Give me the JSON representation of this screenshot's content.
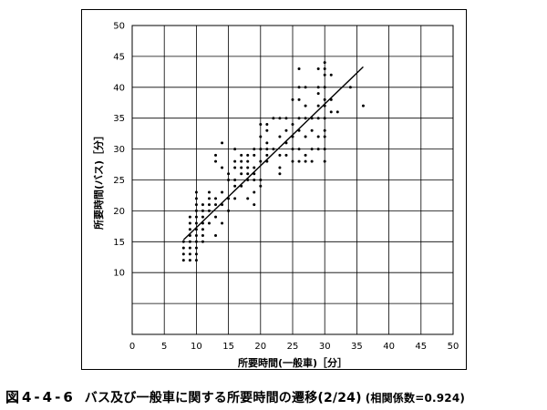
{
  "caption": {
    "figure_number": "図4-4-6",
    "text": "バス及び一般車に関する所要時間の遷移(2/24)",
    "coefficient": "(相関係数=0.924)"
  },
  "chart_data": {
    "type": "scatter",
    "xlabel": "所要時間(一般車)［分］",
    "ylabel": "所要時間(バス)［分］",
    "xlim": [
      0,
      50
    ],
    "ylim": [
      0,
      50
    ],
    "xticks": [
      0,
      5,
      10,
      15,
      20,
      25,
      30,
      35,
      40,
      45,
      50
    ],
    "yticks": [
      10,
      15,
      20,
      25,
      30,
      35,
      40,
      45,
      50
    ],
    "grid": true,
    "series": [
      {
        "marker": "dot",
        "color": "#000000",
        "points": [
          [
            8,
            12
          ],
          [
            8,
            13
          ],
          [
            8,
            14
          ],
          [
            8,
            15
          ],
          [
            9,
            12
          ],
          [
            9,
            13
          ],
          [
            9,
            14
          ],
          [
            9,
            15
          ],
          [
            9,
            16
          ],
          [
            9,
            17
          ],
          [
            9,
            18
          ],
          [
            9,
            19
          ],
          [
            10,
            12
          ],
          [
            10,
            13
          ],
          [
            10,
            14
          ],
          [
            10,
            15
          ],
          [
            10,
            16
          ],
          [
            10,
            17
          ],
          [
            10,
            18
          ],
          [
            10,
            19
          ],
          [
            10,
            20
          ],
          [
            10,
            21
          ],
          [
            10,
            22
          ],
          [
            10,
            23
          ],
          [
            11,
            15
          ],
          [
            11,
            16
          ],
          [
            11,
            17
          ],
          [
            11,
            18
          ],
          [
            11,
            19
          ],
          [
            11,
            20
          ],
          [
            11,
            21
          ],
          [
            12,
            18
          ],
          [
            12,
            20
          ],
          [
            12,
            21
          ],
          [
            12,
            22
          ],
          [
            12,
            23
          ],
          [
            13,
            16
          ],
          [
            13,
            19
          ],
          [
            13,
            21
          ],
          [
            13,
            22
          ],
          [
            13,
            28
          ],
          [
            13,
            29
          ],
          [
            14,
            18
          ],
          [
            14,
            21
          ],
          [
            14,
            23
          ],
          [
            14,
            27
          ],
          [
            14,
            31
          ],
          [
            15,
            20
          ],
          [
            15,
            22
          ],
          [
            15,
            25
          ],
          [
            15,
            26
          ],
          [
            16,
            22
          ],
          [
            16,
            24
          ],
          [
            16,
            25
          ],
          [
            16,
            27
          ],
          [
            16,
            28
          ],
          [
            16,
            30
          ],
          [
            17,
            24
          ],
          [
            17,
            26
          ],
          [
            17,
            27
          ],
          [
            17,
            28
          ],
          [
            17,
            29
          ],
          [
            18,
            22
          ],
          [
            18,
            25
          ],
          [
            18,
            26
          ],
          [
            18,
            27
          ],
          [
            18,
            28
          ],
          [
            18,
            29
          ],
          [
            19,
            21
          ],
          [
            19,
            23
          ],
          [
            19,
            25
          ],
          [
            19,
            26
          ],
          [
            19,
            27
          ],
          [
            19,
            29
          ],
          [
            19,
            30
          ],
          [
            20,
            24
          ],
          [
            20,
            25
          ],
          [
            20,
            28
          ],
          [
            20,
            30
          ],
          [
            20,
            32
          ],
          [
            20,
            34
          ],
          [
            21,
            28
          ],
          [
            21,
            29
          ],
          [
            21,
            30
          ],
          [
            21,
            31
          ],
          [
            21,
            33
          ],
          [
            21,
            34
          ],
          [
            22,
            30
          ],
          [
            22,
            35
          ],
          [
            23,
            26
          ],
          [
            23,
            27
          ],
          [
            23,
            29
          ],
          [
            23,
            32
          ],
          [
            23,
            35
          ],
          [
            24,
            29
          ],
          [
            24,
            31
          ],
          [
            24,
            33
          ],
          [
            24,
            35
          ],
          [
            25,
            28
          ],
          [
            25,
            30
          ],
          [
            25,
            32
          ],
          [
            25,
            34
          ],
          [
            25,
            38
          ],
          [
            26,
            28
          ],
          [
            26,
            30
          ],
          [
            26,
            33
          ],
          [
            26,
            35
          ],
          [
            26,
            38
          ],
          [
            26,
            40
          ],
          [
            26,
            43
          ],
          [
            27,
            28
          ],
          [
            27,
            29
          ],
          [
            27,
            32
          ],
          [
            27,
            35
          ],
          [
            27,
            37
          ],
          [
            27,
            40
          ],
          [
            28,
            28
          ],
          [
            28,
            30
          ],
          [
            28,
            33
          ],
          [
            28,
            35
          ],
          [
            29,
            30
          ],
          [
            29,
            32
          ],
          [
            29,
            35
          ],
          [
            29,
            37
          ],
          [
            29,
            39
          ],
          [
            29,
            40
          ],
          [
            29,
            43
          ],
          [
            30,
            28
          ],
          [
            30,
            30
          ],
          [
            30,
            32
          ],
          [
            30,
            33
          ],
          [
            30,
            35
          ],
          [
            30,
            37
          ],
          [
            30,
            38
          ],
          [
            30,
            40
          ],
          [
            30,
            42
          ],
          [
            30,
            43
          ],
          [
            30,
            44
          ],
          [
            31,
            36
          ],
          [
            31,
            38
          ],
          [
            31,
            42
          ],
          [
            32,
            36
          ],
          [
            34,
            40
          ],
          [
            36,
            37
          ]
        ]
      }
    ],
    "trendline": {
      "x1": 8,
      "y1": 15.3,
      "x2": 36,
      "y2": 43.3
    }
  }
}
